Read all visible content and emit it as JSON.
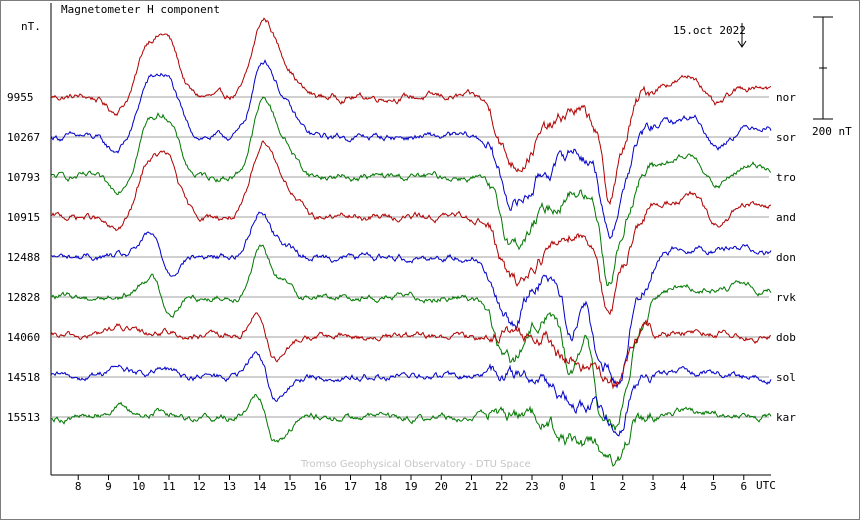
{
  "chart_data": {
    "type": "line",
    "title": "Magnetometer H component",
    "ylabel": "nT.",
    "date": "15.oct 2022",
    "credit": "Tromso Geophysical Observatory - DTU Space",
    "scale_label": "200 nT",
    "xlabel": "UTC",
    "x_ticks": [
      "8",
      "9",
      "10",
      "11",
      "12",
      "13",
      "14",
      "15",
      "16",
      "17",
      "18",
      "19",
      "20",
      "21",
      "22",
      "23",
      "0",
      "1",
      "2",
      "3",
      "4",
      "5",
      "6"
    ],
    "x_start_hour": 7.1,
    "x_end_hour": 30.9,
    "series": [
      {
        "name": "nor",
        "baseline": "9955",
        "color": "#b00000",
        "kind": "high"
      },
      {
        "name": "sor",
        "baseline": "10267",
        "color": "#0000c8",
        "kind": "high"
      },
      {
        "name": "tro",
        "baseline": "10793",
        "color": "#007800",
        "kind": "high"
      },
      {
        "name": "and",
        "baseline": "10915",
        "color": "#b00000",
        "kind": "high"
      },
      {
        "name": "don",
        "baseline": "12488",
        "color": "#0000c8",
        "kind": "mid"
      },
      {
        "name": "rvk",
        "baseline": "12828",
        "color": "#007800",
        "kind": "mid"
      },
      {
        "name": "dob",
        "baseline": "14060",
        "color": "#b00000",
        "kind": "low"
      },
      {
        "name": "sol",
        "baseline": "14518",
        "color": "#0000c8",
        "kind": "low"
      },
      {
        "name": "kar",
        "baseline": "15513",
        "color": "#007800",
        "kind": "low"
      }
    ]
  }
}
